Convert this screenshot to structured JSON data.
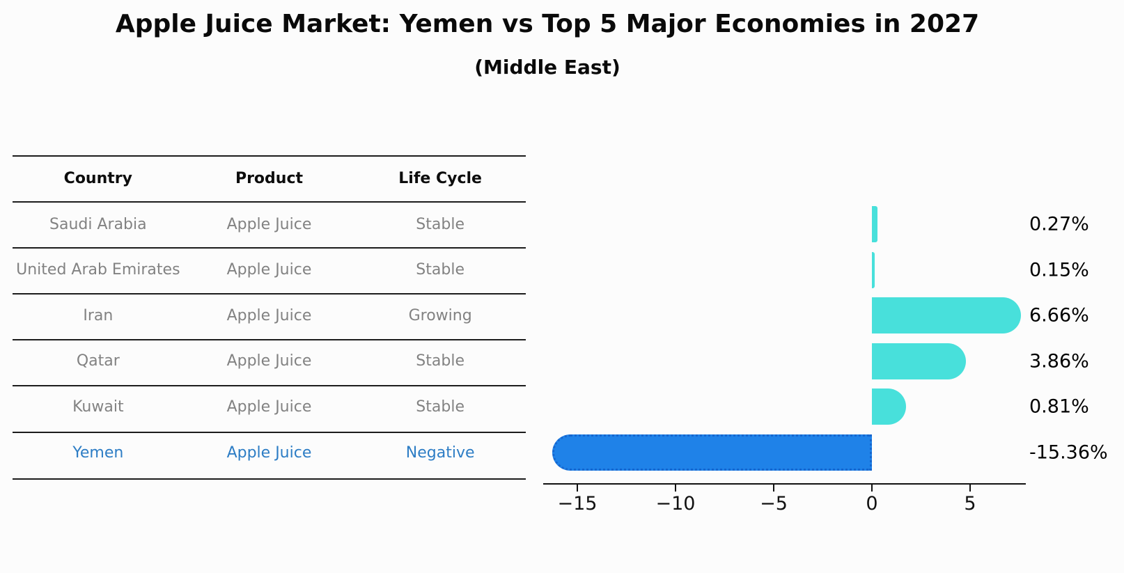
{
  "title": "Apple Juice Market: Yemen vs Top 5 Major Economies in 2027",
  "subtitle": "(Middle East)",
  "table": {
    "headers": [
      "Country",
      "Product",
      "Life Cycle"
    ],
    "rows": [
      {
        "country": "Saudi Arabia",
        "product": "Apple Juice",
        "life_cycle": "Stable",
        "highlight": false
      },
      {
        "country": "United Arab Emirates",
        "product": "Apple Juice",
        "life_cycle": "Stable",
        "highlight": false
      },
      {
        "country": "Iran",
        "product": "Apple Juice",
        "life_cycle": "Growing",
        "highlight": false
      },
      {
        "country": "Qatar",
        "product": "Apple Juice",
        "life_cycle": "Stable",
        "highlight": false
      },
      {
        "country": "Kuwait",
        "product": "Apple Juice",
        "life_cycle": "Stable",
        "highlight": false
      },
      {
        "country": "Yemen",
        "product": "Apple Juice",
        "life_cycle": "Negative",
        "highlight": true
      }
    ]
  },
  "chart_data": {
    "type": "bar",
    "orientation": "horizontal",
    "categories": [
      "Saudi Arabia",
      "United Arab Emirates",
      "Iran",
      "Qatar",
      "Kuwait",
      "Yemen"
    ],
    "values": [
      0.27,
      0.15,
      6.66,
      3.86,
      0.81,
      -15.36
    ],
    "value_labels": [
      "0.27%",
      "0.15%",
      "6.66%",
      "3.86%",
      "0.81%",
      "-15.36%"
    ],
    "xticks": [
      -15,
      -10,
      -5,
      0,
      5
    ],
    "xtick_labels": [
      "−15",
      "−10",
      "−5",
      "0",
      "5"
    ],
    "xlim": [
      -16.7,
      7.8
    ],
    "grid": false,
    "legend": null,
    "bar_color": "#48e0db",
    "highlight_bar_color": "#1f82e8",
    "highlight_border_color": "#1566cf",
    "highlight_text_color": "#2d7dc5",
    "table_text_color": "#828282"
  }
}
